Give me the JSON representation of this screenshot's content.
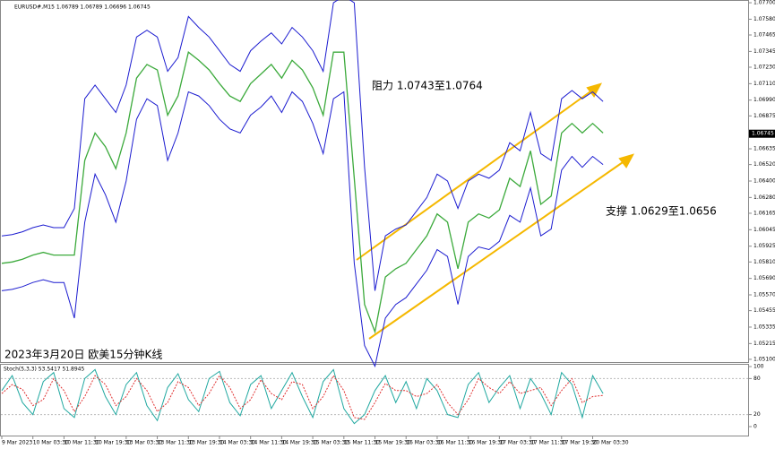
{
  "chart_data": [
    {
      "type": "line",
      "title": "EURUSD#,M15 1.06789 1.06789 1.06696 1.06745",
      "annotations": [
        "阻力 1.0743至1.0764",
        "支撑 1.0629至1.0656",
        "2023年3月20日 欧美15分钟K线"
      ],
      "categories": [
        "9 Mar 2023",
        null,
        null,
        "10 Mar 03:30",
        null,
        null,
        "10 Mar 11:30",
        null,
        null,
        "10 Mar 19:30",
        null,
        null,
        "13 Mar 03:30",
        null,
        null,
        "13 Mar 11:30",
        null,
        null,
        "13 Mar 19:30",
        null,
        null,
        "14 Mar 03:30",
        null,
        null,
        "14 Mar 11:30",
        null,
        null,
        "14 Mar 19:30",
        null,
        null,
        "15 Mar 03:30",
        null,
        null,
        "15 Mar 11:30",
        null,
        null,
        "15 Mar 19:30",
        null,
        null,
        "16 Mar 03:30",
        null,
        null,
        "16 Mar 11:30",
        null,
        null,
        "16 Mar 19:30",
        null,
        null,
        "17 Mar 03:30",
        null,
        null,
        "17 Mar 11:30",
        null,
        null,
        "17 Mar 19:30",
        null,
        null,
        "20 Mar 03:30",
        null
      ],
      "series": [
        {
          "color": "#1c1cd0",
          "values": [
            1.06,
            1.0601,
            1.0603,
            1.0606,
            1.0608,
            1.0606,
            1.0606,
            1.062,
            1.07,
            1.071,
            1.07,
            1.069,
            1.071,
            1.0745,
            1.075,
            1.0745,
            1.072,
            1.073,
            1.076,
            1.0752,
            1.0745,
            1.0735,
            1.0725,
            1.072,
            1.0735,
            1.0742,
            1.0748,
            1.074,
            1.0752,
            1.0745,
            1.0735,
            1.072,
            1.077,
            1.0775,
            1.077,
            1.065,
            1.056,
            1.06,
            1.0605,
            1.0608,
            1.0618,
            1.0628,
            1.0645,
            1.064,
            1.062,
            1.064,
            1.0645,
            1.0642,
            1.0648,
            1.0668,
            1.0662,
            1.069,
            1.066,
            1.0655,
            1.07,
            1.0706,
            1.07,
            1.0705,
            1.0698
          ]
        },
        {
          "color": "#3caa3c",
          "values": [
            1.058,
            1.0581,
            1.0583,
            1.0586,
            1.0588,
            1.0586,
            1.0586,
            1.0586,
            1.0655,
            1.0675,
            1.0665,
            1.0649,
            1.0675,
            1.0715,
            1.0725,
            1.0721,
            1.0688,
            1.0702,
            1.0734,
            1.0728,
            1.0721,
            1.0711,
            1.0702,
            1.0698,
            1.0711,
            1.0718,
            1.0725,
            1.0715,
            1.0728,
            1.0721,
            1.0708,
            1.0688,
            1.0734,
            1.0734,
            1.0642,
            1.055,
            1.053,
            1.057,
            1.0576,
            1.058,
            1.059,
            1.06,
            1.0616,
            1.061,
            1.0576,
            1.061,
            1.0616,
            1.0613,
            1.0619,
            1.0642,
            1.0636,
            1.0662,
            1.0623,
            1.0629,
            1.0675,
            1.0682,
            1.0675,
            1.0682,
            1.0675
          ]
        },
        {
          "color": "#1c1cd0",
          "values": [
            1.056,
            1.0561,
            1.0563,
            1.0566,
            1.0568,
            1.0566,
            1.0566,
            1.054,
            1.061,
            1.0645,
            1.063,
            1.061,
            1.064,
            1.0685,
            1.07,
            1.0695,
            1.0655,
            1.0675,
            1.0705,
            1.0702,
            1.0695,
            1.0685,
            1.0678,
            1.0675,
            1.0688,
            1.0694,
            1.0702,
            1.069,
            1.0705,
            1.0698,
            1.0682,
            1.066,
            1.07,
            1.0705,
            1.058,
            1.052,
            1.0505,
            1.054,
            1.055,
            1.0555,
            1.0565,
            1.0575,
            1.059,
            1.0585,
            1.055,
            1.0585,
            1.0592,
            1.059,
            1.0596,
            1.0615,
            1.061,
            1.0635,
            1.06,
            1.0605,
            1.0648,
            1.0658,
            1.065,
            1.0658,
            1.0652
          ]
        }
      ],
      "last_price": 1.06745,
      "ylim": [
        1.0508,
        1.0772
      ],
      "yticks": [
        {
          "value": 1.077,
          "label": "1.07700"
        },
        {
          "value": 1.0758,
          "label": "1.07580"
        },
        1.07465,
        1.07345,
        {
          "value": 1.0723,
          "label": "1.07230"
        },
        {
          "value": 1.0711,
          "label": "1.07110"
        },
        {
          "value": 1.0699,
          "label": "1.06990"
        },
        1.06875,
        1.06635,
        {
          "value": 1.0652,
          "label": "1.06520"
        },
        {
          "value": 1.064,
          "label": "1.06400"
        },
        {
          "value": 1.0628,
          "label": "1.06280"
        },
        1.06165,
        1.06045,
        1.05925,
        {
          "value": 1.0581,
          "label": "1.05810"
        },
        {
          "value": 1.0569,
          "label": "1.05690"
        },
        {
          "value": 1.0557,
          "label": "1.05570"
        },
        1.05455,
        1.05335,
        1.05215,
        {
          "value": 1.051,
          "label": "1.05100"
        }
      ]
    },
    {
      "type": "line",
      "title": "Stoch(5,3,3) 53.5417 51.8945",
      "series": [
        {
          "color": "#20a8a0",
          "values": [
            60,
            85,
            40,
            20,
            75,
            90,
            30,
            15,
            80,
            95,
            50,
            20,
            70,
            90,
            35,
            10,
            65,
            88,
            45,
            25,
            80,
            92,
            40,
            18,
            70,
            85,
            30,
            60,
            90,
            50,
            15,
            75,
            95,
            30,
            5,
            20,
            60,
            85,
            40,
            75,
            30,
            80,
            60,
            20,
            15,
            70,
            90,
            40,
            65,
            85,
            30,
            80,
            55,
            20,
            90,
            70,
            15,
            85,
            55
          ]
        },
        {
          "color": "#e03030",
          "values": [
            55,
            70,
            62,
            35,
            45,
            80,
            60,
            25,
            50,
            85,
            70,
            35,
            50,
            80,
            60,
            25,
            40,
            75,
            65,
            35,
            55,
            85,
            65,
            30,
            45,
            78,
            55,
            45,
            75,
            70,
            30,
            50,
            85,
            60,
            15,
            12,
            40,
            72,
            60,
            60,
            50,
            55,
            70,
            40,
            20,
            45,
            80,
            65,
            55,
            75,
            55,
            60,
            65,
            35,
            60,
            80,
            40,
            50,
            52
          ]
        }
      ],
      "ylim": [
        0,
        100
      ],
      "yticks": [
        100,
        80,
        20,
        0
      ]
    }
  ]
}
